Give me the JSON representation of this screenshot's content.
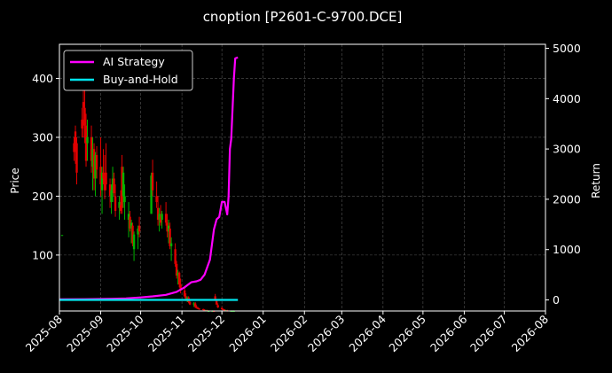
{
  "chart_data": {
    "type": "line",
    "title": "cnoption [P2601-C-9700.DCE]",
    "xlabel": "",
    "ylabel_left": "Price",
    "ylabel_right": "Return",
    "x_ticks": [
      "2025-08",
      "2025-09",
      "2025-10",
      "2025-11",
      "2025-12",
      "2026-01",
      "2026-02",
      "2026-03",
      "2026-04",
      "2026-05",
      "2026-06",
      "2026-07",
      "2026-08"
    ],
    "x_range": [
      "2025-08-01",
      "2026-08-01"
    ],
    "y_left_ticks": [
      100,
      200,
      300,
      400
    ],
    "y_left_range": [
      5,
      458
    ],
    "y_right_ticks": [
      0,
      1000,
      2000,
      3000,
      4000,
      5000
    ],
    "y_right_range": [
      -220,
      5080
    ],
    "grid": true,
    "legend_position": "top-left",
    "colors": {
      "background": "#000000",
      "ai_strategy": "#ff00ff",
      "buy_and_hold": "#00e5ee",
      "candle_up": "#00b400",
      "candle_down": "#e00000",
      "grid": "#555555"
    },
    "series": [
      {
        "name": "AI Strategy",
        "axis": "right",
        "points": [
          [
            "2025-08-01",
            10
          ],
          [
            "2025-08-20",
            15
          ],
          [
            "2025-09-05",
            20
          ],
          [
            "2025-09-20",
            30
          ],
          [
            "2025-10-01",
            50
          ],
          [
            "2025-10-10",
            70
          ],
          [
            "2025-10-20",
            100
          ],
          [
            "2025-10-28",
            160
          ],
          [
            "2025-11-03",
            250
          ],
          [
            "2025-11-08",
            350
          ],
          [
            "2025-11-12",
            370
          ],
          [
            "2025-11-15",
            400
          ],
          [
            "2025-11-18",
            500
          ],
          [
            "2025-11-22",
            800
          ],
          [
            "2025-11-25",
            1400
          ],
          [
            "2025-11-27",
            1600
          ],
          [
            "2025-11-29",
            1650
          ],
          [
            "2025-12-01",
            1950
          ],
          [
            "2025-12-03",
            1950
          ],
          [
            "2025-12-05",
            1700
          ],
          [
            "2025-12-06",
            2050
          ],
          [
            "2025-12-07",
            3000
          ],
          [
            "2025-12-08",
            3200
          ],
          [
            "2025-12-10",
            4400
          ],
          [
            "2025-12-11",
            4800
          ],
          [
            "2025-12-13",
            4820
          ]
        ]
      },
      {
        "name": "Buy-and-Hold",
        "axis": "right",
        "points": [
          [
            "2025-08-01",
            0
          ],
          [
            "2025-12-13",
            0
          ]
        ]
      }
    ],
    "candles": [
      [
        "2025-08-03",
        133,
        134,
        133,
        134
      ],
      [
        "2025-08-12",
        290,
        300,
        260,
        275
      ],
      [
        "2025-08-13",
        310,
        320,
        255,
        285
      ],
      [
        "2025-08-14",
        290,
        300,
        220,
        240
      ],
      [
        "2025-08-18",
        330,
        350,
        300,
        315
      ],
      [
        "2025-08-19",
        360,
        410,
        300,
        350
      ],
      [
        "2025-08-20",
        350,
        390,
        290,
        320
      ],
      [
        "2025-08-21",
        320,
        340,
        250,
        260
      ],
      [
        "2025-08-22",
        290,
        330,
        260,
        300
      ],
      [
        "2025-08-25",
        300,
        320,
        240,
        260
      ],
      [
        "2025-08-26",
        250,
        300,
        210,
        280
      ],
      [
        "2025-08-27",
        280,
        290,
        210,
        230
      ],
      [
        "2025-08-28",
        230,
        275,
        200,
        270
      ],
      [
        "2025-08-29",
        270,
        285,
        230,
        245
      ],
      [
        "2025-09-01",
        250,
        300,
        200,
        220
      ],
      [
        "2025-09-02",
        210,
        250,
        170,
        240
      ],
      [
        "2025-09-03",
        240,
        280,
        220,
        230
      ],
      [
        "2025-09-04",
        230,
        270,
        195,
        210
      ],
      [
        "2025-09-05",
        240,
        290,
        210,
        220
      ],
      [
        "2025-09-08",
        220,
        230,
        180,
        200
      ],
      [
        "2025-09-09",
        190,
        220,
        170,
        210
      ],
      [
        "2025-09-10",
        210,
        250,
        190,
        230
      ],
      [
        "2025-09-11",
        230,
        240,
        200,
        205
      ],
      [
        "2025-09-12",
        200,
        220,
        165,
        175
      ],
      [
        "2025-09-15",
        180,
        200,
        160,
        190
      ],
      [
        "2025-09-16",
        185,
        210,
        170,
        175
      ],
      [
        "2025-09-17",
        250,
        270,
        170,
        180
      ],
      [
        "2025-09-18",
        200,
        250,
        180,
        240
      ],
      [
        "2025-09-19",
        190,
        220,
        160,
        200
      ],
      [
        "2025-09-22",
        160,
        190,
        130,
        170
      ],
      [
        "2025-09-23",
        165,
        175,
        140,
        145
      ],
      [
        "2025-09-24",
        145,
        160,
        120,
        155
      ],
      [
        "2025-09-25",
        150,
        155,
        115,
        120
      ],
      [
        "2025-09-26",
        110,
        140,
        90,
        135
      ],
      [
        "2025-09-29",
        135,
        150,
        110,
        145
      ],
      [
        "2025-09-30",
        150,
        165,
        130,
        140
      ],
      [
        "2025-10-09",
        170,
        240,
        170,
        235
      ],
      [
        "2025-10-10",
        240,
        262,
        200,
        210
      ],
      [
        "2025-10-13",
        200,
        225,
        180,
        190
      ],
      [
        "2025-10-14",
        180,
        200,
        150,
        160
      ],
      [
        "2025-10-15",
        160,
        180,
        140,
        170
      ],
      [
        "2025-10-16",
        165,
        185,
        150,
        155
      ],
      [
        "2025-10-17",
        160,
        175,
        145,
        170
      ],
      [
        "2025-10-20",
        170,
        190,
        150,
        155
      ],
      [
        "2025-10-21",
        155,
        170,
        130,
        140
      ],
      [
        "2025-10-22",
        140,
        160,
        120,
        150
      ],
      [
        "2025-10-23",
        145,
        155,
        110,
        115
      ],
      [
        "2025-10-24",
        115,
        130,
        90,
        120
      ],
      [
        "2025-10-27",
        110,
        120,
        80,
        85
      ],
      [
        "2025-10-28",
        85,
        90,
        60,
        65
      ],
      [
        "2025-10-29",
        65,
        75,
        50,
        70
      ],
      [
        "2025-10-30",
        70,
        72,
        45,
        50
      ],
      [
        "2025-10-31",
        50,
        60,
        35,
        40
      ],
      [
        "2025-11-03",
        40,
        45,
        28,
        30
      ],
      [
        "2025-11-04",
        30,
        35,
        22,
        25
      ],
      [
        "2025-11-05",
        25,
        30,
        20,
        28
      ],
      [
        "2025-11-06",
        28,
        30,
        18,
        20
      ],
      [
        "2025-11-07",
        20,
        24,
        15,
        16
      ],
      [
        "2025-11-10",
        16,
        20,
        12,
        18
      ],
      [
        "2025-11-11",
        18,
        20,
        10,
        12
      ],
      [
        "2025-11-12",
        12,
        15,
        9,
        10
      ],
      [
        "2025-11-13",
        10,
        12,
        8,
        9
      ],
      [
        "2025-11-14",
        9,
        10,
        7,
        8
      ],
      [
        "2025-11-17",
        8,
        9,
        6,
        7
      ],
      [
        "2025-11-18",
        7,
        8,
        5,
        6
      ],
      [
        "2025-11-19",
        6,
        7,
        5,
        6
      ],
      [
        "2025-11-20",
        6,
        7,
        5,
        5
      ],
      [
        "2025-11-21",
        5,
        6,
        4,
        5
      ],
      [
        "2025-11-24",
        5,
        6,
        4,
        5
      ],
      [
        "2025-11-25",
        5,
        6,
        4,
        4
      ],
      [
        "2025-11-26",
        30,
        34,
        22,
        24
      ],
      [
        "2025-11-27",
        22,
        25,
        15,
        16
      ],
      [
        "2025-11-28",
        15,
        18,
        10,
        11
      ],
      [
        "2025-12-01",
        10,
        12,
        7,
        8
      ],
      [
        "2025-12-02",
        8,
        9,
        6,
        7
      ],
      [
        "2025-12-03",
        7,
        8,
        5,
        6
      ],
      [
        "2025-12-04",
        6,
        7,
        5,
        6
      ],
      [
        "2025-12-05",
        6,
        7,
        4,
        5
      ],
      [
        "2025-12-08",
        5,
        6,
        4,
        5
      ],
      [
        "2025-12-09",
        5,
        6,
        4,
        5
      ],
      [
        "2025-12-10",
        5,
        6,
        4,
        5
      ]
    ]
  }
}
